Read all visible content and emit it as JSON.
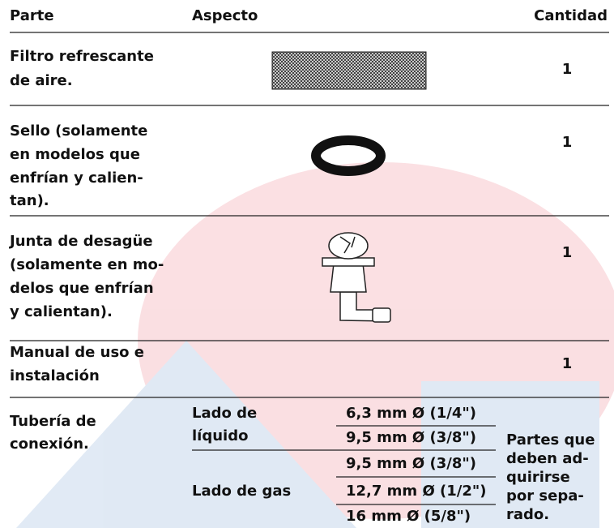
{
  "header": [
    "Parte",
    "Aspecto",
    "Cantidad"
  ],
  "rows": [
    {
      "parte": [
        "Filtro refrescante",
        "de aire."
      ],
      "cantidad": "1"
    },
    {
      "parte": [
        "Sello (solamente",
        "en modelos que",
        "enfrían y calien-",
        "tan)."
      ],
      "cantidad": "1"
    },
    {
      "parte": [
        "Junta de desagüe",
        "(solamente en mo-",
        "delos que enfrían",
        "y calientan)."
      ],
      "cantidad": "1"
    },
    {
      "parte": [
        "Manual de uso e",
        "instalación"
      ],
      "cantidad": "1"
    }
  ],
  "tuberia": {
    "parte": [
      "Tubería de",
      "conexión."
    ],
    "lados": [
      {
        "label": [
          "Lado de",
          "líquido"
        ],
        "sizes": [
          "6,3 mm Ø (1/4\")",
          "9,5 mm Ø (3/8\")"
        ]
      },
      {
        "label": [
          "Lado de gas"
        ],
        "sizes": [
          "9,5 mm Ø (3/8\")",
          "12,7 mm Ø (1/2\")",
          "16 mm Ø (5/8\")"
        ]
      }
    ],
    "cantidad": [
      "Partes que",
      "deben ad-",
      "quirirse",
      "por sepa-",
      "rado."
    ]
  }
}
